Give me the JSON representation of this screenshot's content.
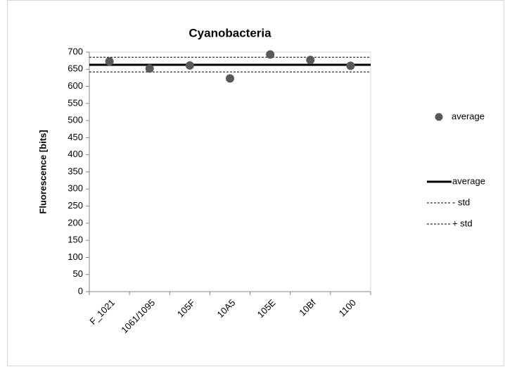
{
  "chart_data": {
    "type": "scatter",
    "title": "Cyanobacteria",
    "y_label": "Fluorescence [bits]",
    "categories": [
      "F_1021",
      "1061/1095",
      "105F",
      "10A5",
      "105E",
      "10Bf",
      "1100"
    ],
    "series": [
      {
        "name": "average",
        "color": "#595959",
        "values": [
          673,
          652,
          661,
          623,
          693,
          677,
          660
        ]
      }
    ],
    "reference_lines": [
      {
        "name": "average",
        "value": 663,
        "color": "#000000",
        "dashed": false
      },
      {
        "name": "- std",
        "value": 642,
        "color": "#000000",
        "dashed": true
      },
      {
        "name": "+ std",
        "value": 685,
        "color": "#000000",
        "dashed": true
      }
    ],
    "ylim": [
      0,
      700
    ],
    "yticks": [
      0,
      50,
      100,
      150,
      200,
      250,
      300,
      350,
      400,
      450,
      500,
      550,
      600,
      650,
      700
    ],
    "legend": "right"
  }
}
